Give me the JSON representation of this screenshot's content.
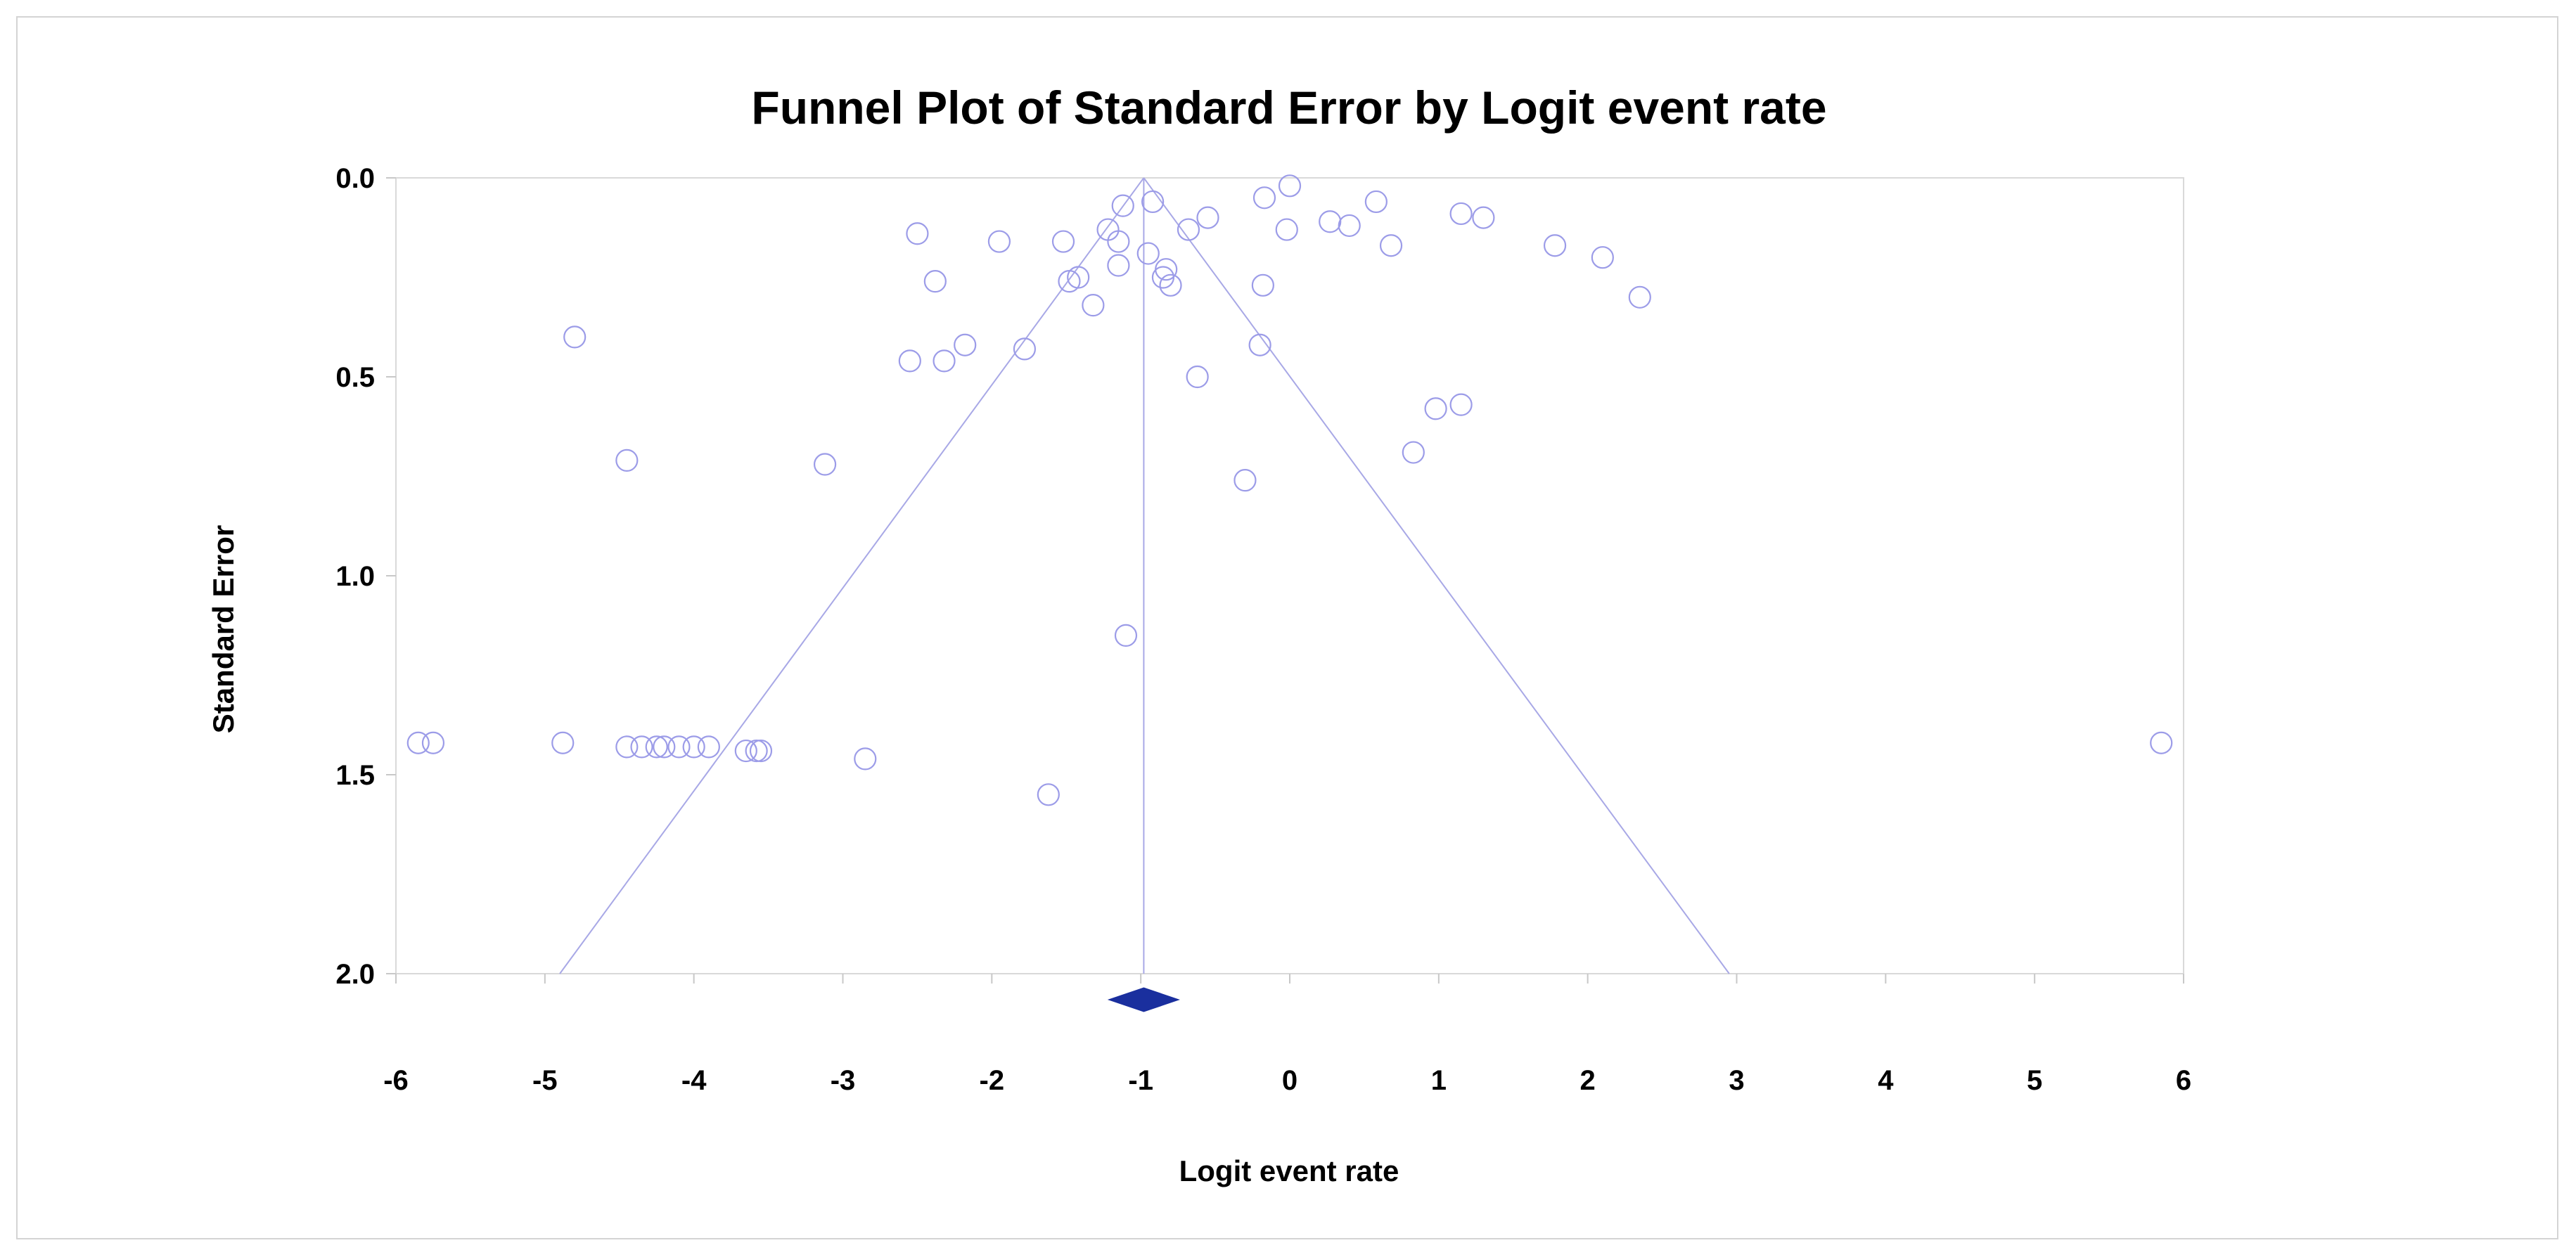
{
  "chart_data": {
    "type": "scatter",
    "title": "Funnel Plot of Standard Error by Logit event rate",
    "xlabel": "Logit event rate",
    "ylabel": "Standard Error",
    "xlim": [
      -6,
      6
    ],
    "ylim": [
      0,
      2
    ],
    "y_inverted": true,
    "x_ticks": [
      "-6",
      "-5",
      "-4",
      "-3",
      "-2",
      "-1",
      "0",
      "1",
      "2",
      "3",
      "4",
      "5",
      "6"
    ],
    "y_ticks": [
      "0.0",
      "0.5",
      "1.0",
      "1.5",
      "2.0"
    ],
    "grid": false,
    "legend": "none",
    "funnel": {
      "center": -0.98,
      "apex_se": 0.0,
      "base_se": 2.0,
      "left_at_base": -4.9,
      "right_at_base": 2.95
    },
    "summary_estimate": {
      "x": -0.98,
      "shape": "diamond"
    },
    "colors": {
      "points": "#9c9ce8",
      "funnel": "#a8a8e6",
      "diamond": "#1a2f9e",
      "plot_border": "#d9d9d9"
    },
    "points": [
      {
        "x": -5.85,
        "y": 1.42
      },
      {
        "x": -5.75,
        "y": 1.42
      },
      {
        "x": -4.8,
        "y": 0.4
      },
      {
        "x": -4.88,
        "y": 1.42
      },
      {
        "x": -4.45,
        "y": 0.71
      },
      {
        "x": -4.45,
        "y": 1.43
      },
      {
        "x": -4.35,
        "y": 1.43
      },
      {
        "x": -4.25,
        "y": 1.43
      },
      {
        "x": -4.2,
        "y": 1.43
      },
      {
        "x": -4.1,
        "y": 1.43
      },
      {
        "x": -4.0,
        "y": 1.43
      },
      {
        "x": -3.9,
        "y": 1.43
      },
      {
        "x": -3.65,
        "y": 1.44
      },
      {
        "x": -3.58,
        "y": 1.44
      },
      {
        "x": -3.55,
        "y": 1.44
      },
      {
        "x": -3.12,
        "y": 0.72
      },
      {
        "x": -2.85,
        "y": 1.46
      },
      {
        "x": -2.55,
        "y": 0.46
      },
      {
        "x": -2.5,
        "y": 0.14
      },
      {
        "x": -2.38,
        "y": 0.26
      },
      {
        "x": -2.32,
        "y": 0.46
      },
      {
        "x": -2.18,
        "y": 0.42
      },
      {
        "x": -1.95,
        "y": 0.16
      },
      {
        "x": -1.78,
        "y": 0.43
      },
      {
        "x": -1.62,
        "y": 1.55
      },
      {
        "x": -1.52,
        "y": 0.16
      },
      {
        "x": -1.48,
        "y": 0.26
      },
      {
        "x": -1.42,
        "y": 0.25
      },
      {
        "x": -1.32,
        "y": 0.32
      },
      {
        "x": -1.22,
        "y": 0.13
      },
      {
        "x": -1.15,
        "y": 0.16
      },
      {
        "x": -1.15,
        "y": 0.22
      },
      {
        "x": -1.12,
        "y": 0.07
      },
      {
        "x": -1.1,
        "y": 1.15
      },
      {
        "x": -0.95,
        "y": 0.19
      },
      {
        "x": -0.92,
        "y": 0.06
      },
      {
        "x": -0.85,
        "y": 0.25
      },
      {
        "x": -0.83,
        "y": 0.23
      },
      {
        "x": -0.8,
        "y": 0.27
      },
      {
        "x": -0.68,
        "y": 0.13
      },
      {
        "x": -0.62,
        "y": 0.5
      },
      {
        "x": -0.55,
        "y": 0.1
      },
      {
        "x": -0.3,
        "y": 0.76
      },
      {
        "x": -0.2,
        "y": 0.42
      },
      {
        "x": -0.18,
        "y": 0.27
      },
      {
        "x": -0.17,
        "y": 0.05
      },
      {
        "x": -0.02,
        "y": 0.13
      },
      {
        "x": 0.0,
        "y": 0.02
      },
      {
        "x": 0.27,
        "y": 0.11
      },
      {
        "x": 0.4,
        "y": 0.12
      },
      {
        "x": 0.58,
        "y": 0.06
      },
      {
        "x": 0.68,
        "y": 0.17
      },
      {
        "x": 0.83,
        "y": 0.69
      },
      {
        "x": 0.98,
        "y": 0.58
      },
      {
        "x": 1.15,
        "y": 0.57
      },
      {
        "x": 1.15,
        "y": 0.09
      },
      {
        "x": 1.3,
        "y": 0.1
      },
      {
        "x": 1.78,
        "y": 0.17
      },
      {
        "x": 2.1,
        "y": 0.2
      },
      {
        "x": 2.35,
        "y": 0.3
      },
      {
        "x": 5.85,
        "y": 1.42
      }
    ]
  }
}
